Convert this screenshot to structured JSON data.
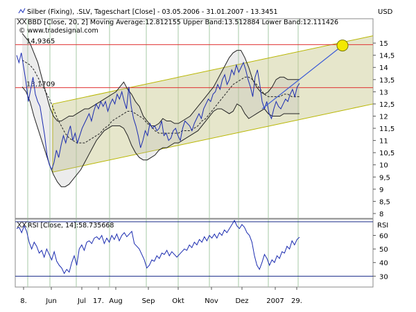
{
  "chart_data": [
    {
      "type": "line",
      "title": "Silber (Fixing), .SLV, Tageschart [Close] - 03.05.2006 - 31.01.2007 - 13.3451",
      "currency_label": "USD",
      "indicator_label": "BBD [Close, 20, 2] Moving Average:12.812155 Upper Band:13.512884 Lower Band:12.111426",
      "watermark": "© www.tradesignal.com",
      "ylim": [
        7.8,
        16.0
      ],
      "y_ticks": [
        "8",
        "8,5",
        "9",
        "9,5",
        "10",
        "10,5",
        "11",
        "11,5",
        "12",
        "12,5",
        "13",
        "13,5",
        "14",
        "14,5",
        "15"
      ],
      "y_tick_values": [
        8,
        8.5,
        9,
        9.5,
        10,
        10.5,
        11,
        11.5,
        12,
        12.5,
        13,
        13.5,
        14,
        14.5,
        15
      ],
      "x_tick_labels": [
        "8.",
        "Jun",
        "Jul",
        "17.",
        "Aug",
        "Sep",
        "Okt",
        "Nov",
        "Dez",
        "2007",
        "29."
      ],
      "horizontal_levels": [
        {
          "label": "14,9365",
          "value": 14.9365
        },
        {
          "label": "13,1709",
          "value": 13.1709
        }
      ],
      "channel": {
        "lower_start": 9.7,
        "lower_end": 12.5,
        "upper_start": 12.5,
        "upper_end": 15.3
      },
      "trend_target": {
        "from": [
          105,
          12.3
        ],
        "to": [
          124,
          14.9
        ]
      },
      "series": [
        {
          "name": "Close",
          "values": [
            14.5,
            14.2,
            14.6,
            14.0,
            13.4,
            12.6,
            13.1,
            13.6,
            12.9,
            12.6,
            12.4,
            11.8,
            11.2,
            10.4,
            10.0,
            9.8,
            10.1,
            10.6,
            10.3,
            10.8,
            11.2,
            10.9,
            11.3,
            11.6,
            11.0,
            11.3,
            10.9,
            11.2,
            11.5,
            11.7,
            11.9,
            12.1,
            11.8,
            12.2,
            12.5,
            12.3,
            12.6,
            12.4,
            12.6,
            12.2,
            12.5,
            12.7,
            12.5,
            12.9,
            12.7,
            13.0,
            12.6,
            12.3,
            13.2,
            12.4,
            11.9,
            11.6,
            11.2,
            10.7,
            11.0,
            11.4,
            11.2,
            11.7,
            11.5,
            11.6,
            11.4,
            11.5,
            11.8,
            11.2,
            11.3,
            11.0,
            11.1,
            11.4,
            11.5,
            11.2,
            11.0,
            11.5,
            11.8,
            11.7,
            11.6,
            11.4,
            11.7,
            11.9,
            12.1,
            11.9,
            12.3,
            12.5,
            12.7,
            12.6,
            12.9,
            13.0,
            13.3,
            13.1,
            13.5,
            13.7,
            13.3,
            13.5,
            13.9,
            13.7,
            14.1,
            13.8,
            14.0,
            14.2,
            13.9,
            13.5,
            13.2,
            12.8,
            13.6,
            13.9,
            13.3,
            12.6,
            12.3,
            12.6,
            12.1,
            11.9,
            12.3,
            12.6,
            12.4,
            12.3,
            12.5,
            12.7,
            12.6,
            12.9,
            13.1,
            12.8,
            13.2,
            13.3451
          ]
        },
        {
          "name": "Moving Average",
          "values": [
            14.3,
            14.2,
            14.1,
            13.9,
            13.6,
            13.3,
            13.0,
            12.7,
            12.3,
            11.9,
            11.6,
            11.3,
            11.1,
            11.0,
            10.9,
            10.9,
            10.9,
            11.0,
            11.1,
            11.2,
            11.3,
            11.5,
            11.6,
            11.8,
            11.9,
            12.0,
            12.1,
            12.2,
            12.2,
            12.1,
            12.0,
            11.9,
            11.7,
            11.6,
            11.4,
            11.3,
            11.3,
            11.3,
            11.3,
            11.3,
            11.3,
            11.4,
            11.4,
            11.4,
            11.5,
            11.6,
            11.8,
            11.9,
            12.1,
            12.3,
            12.5,
            12.7,
            12.9,
            13.1,
            13.3,
            13.4,
            13.5,
            13.6,
            13.6,
            13.5,
            13.3,
            13.1,
            12.9,
            12.8,
            12.8,
            12.8,
            12.8,
            12.9,
            12.9,
            12.8,
            12.8,
            12.8
          ]
        },
        {
          "name": "Upper Band",
          "values": [
            15.4,
            15.2,
            15.0,
            14.6,
            14.2,
            13.6,
            13.0,
            12.4,
            12.0,
            11.8,
            11.8,
            11.9,
            12.0,
            12.0,
            12.1,
            12.2,
            12.3,
            12.3,
            12.4,
            12.5,
            12.6,
            12.7,
            12.8,
            12.9,
            13.0,
            13.2,
            13.4,
            13.1,
            12.9,
            12.6,
            12.4,
            12.0,
            11.8,
            11.6,
            11.6,
            11.7,
            11.9,
            11.8,
            11.8,
            11.7,
            11.7,
            11.8,
            11.9,
            12.0,
            12.2,
            12.4,
            12.6,
            12.8,
            13.0,
            13.2,
            13.5,
            13.8,
            14.1,
            14.4,
            14.6,
            14.7,
            14.7,
            14.4,
            14.0,
            13.5,
            13.2,
            13.0,
            12.9,
            13.0,
            13.2,
            13.5,
            13.6,
            13.6,
            13.5,
            13.5,
            13.5,
            13.5
          ]
        },
        {
          "name": "Lower Band",
          "values": [
            13.2,
            13.0,
            12.6,
            12.0,
            11.5,
            11.0,
            10.5,
            10.0,
            9.6,
            9.3,
            9.1,
            9.1,
            9.2,
            9.4,
            9.6,
            9.8,
            10.1,
            10.4,
            10.7,
            11.0,
            11.2,
            11.4,
            11.5,
            11.6,
            11.6,
            11.6,
            11.5,
            11.2,
            10.8,
            10.5,
            10.3,
            10.2,
            10.2,
            10.3,
            10.4,
            10.6,
            10.7,
            10.7,
            10.8,
            10.9,
            10.9,
            11.0,
            11.1,
            11.2,
            11.3,
            11.4,
            11.6,
            11.8,
            12.0,
            12.2,
            12.3,
            12.3,
            12.2,
            12.1,
            12.2,
            12.5,
            12.4,
            12.1,
            11.9,
            12.0,
            12.1,
            12.2,
            12.3,
            12.1,
            12.0,
            12.0,
            12.0,
            12.1,
            12.1,
            12.1,
            12.1,
            12.1
          ]
        }
      ]
    },
    {
      "type": "line",
      "title": "RSI [Close, 14]:58.735668",
      "axis_label": "RSI",
      "ylim": [
        22,
        72
      ],
      "y_ticks": [
        "30",
        "40",
        "50",
        "60"
      ],
      "y_tick_values": [
        30,
        40,
        50,
        60
      ],
      "reference_lines": [
        30,
        70
      ],
      "series": [
        {
          "name": "RSI",
          "values": [
            65,
            66,
            62,
            67,
            63,
            55,
            50,
            55,
            52,
            47,
            49,
            44,
            50,
            46,
            42,
            48,
            41,
            38,
            36,
            32,
            35,
            33,
            40,
            45,
            38,
            50,
            53,
            49,
            55,
            56,
            54,
            58,
            59,
            57,
            60,
            54,
            58,
            55,
            60,
            57,
            61,
            56,
            60,
            62,
            59,
            61,
            63,
            54,
            52,
            50,
            46,
            42,
            36,
            38,
            42,
            41,
            45,
            43,
            47,
            46,
            49,
            45,
            48,
            46,
            44,
            46,
            48,
            50,
            49,
            53,
            51,
            55,
            53,
            57,
            55,
            59,
            56,
            60,
            58,
            61,
            58,
            62,
            60,
            64,
            62,
            65,
            68,
            71,
            67,
            65,
            68,
            66,
            62,
            60,
            55,
            45,
            38,
            35,
            40,
            46,
            43,
            38,
            42,
            40,
            45,
            43,
            48,
            47,
            52,
            50,
            56,
            53,
            57,
            58.7
          ]
        }
      ]
    }
  ]
}
